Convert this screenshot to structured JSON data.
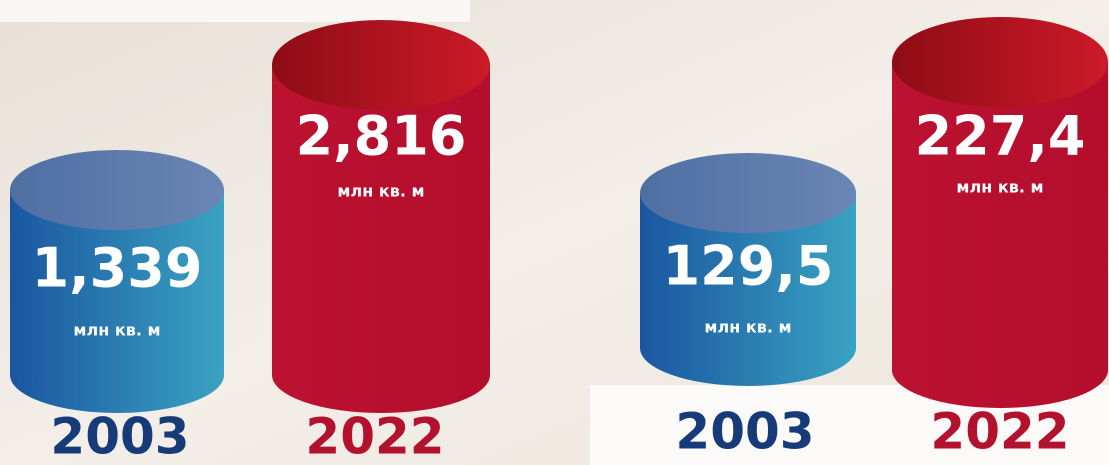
{
  "panels": [
    {
      "items": [
        {
          "value": "1,339",
          "unit": "млн кв. м",
          "year": "2003"
        },
        {
          "value": "2,816",
          "unit": "млн кв. м",
          "year": "2022"
        }
      ]
    },
    {
      "items": [
        {
          "value": "129,5",
          "unit": "млн кв. м",
          "year": "2003"
        },
        {
          "value": "227,4",
          "unit": "млн кв. м",
          "year": "2022"
        }
      ]
    }
  ]
}
